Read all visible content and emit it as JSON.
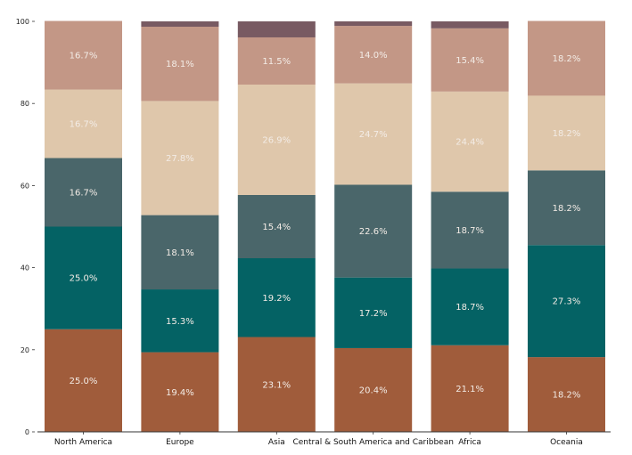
{
  "chart_data": {
    "type": "bar",
    "stacked": true,
    "title": "",
    "xlabel": "",
    "ylabel": "",
    "ylim": [
      0,
      100
    ],
    "yticks": [
      0,
      20,
      40,
      60,
      80,
      100
    ],
    "grid": false,
    "legend": "none",
    "categories": [
      "North America",
      "Europe",
      "Asia",
      "Central & South America and Caribbean",
      "Africa",
      "Oceania"
    ],
    "series": [
      {
        "name": "segment-1",
        "color": "#a05c3b",
        "values": [
          25.0,
          19.4,
          23.1,
          20.4,
          21.1,
          18.2
        ],
        "labeled": true
      },
      {
        "name": "segment-2",
        "color": "#046264",
        "values": [
          25.0,
          15.3,
          19.2,
          17.2,
          18.7,
          27.3
        ],
        "labeled": true
      },
      {
        "name": "segment-3",
        "color": "#4a666a",
        "values": [
          16.7,
          18.1,
          15.4,
          22.6,
          18.7,
          18.2
        ],
        "labeled": true
      },
      {
        "name": "segment-4",
        "color": "#dfc7ab",
        "values": [
          16.7,
          27.8,
          26.9,
          24.7,
          24.4,
          18.2
        ],
        "labeled": true
      },
      {
        "name": "segment-5",
        "color": "#c39786",
        "values": [
          16.7,
          18.1,
          11.5,
          14.0,
          15.4,
          18.2
        ],
        "labeled": true
      },
      {
        "name": "segment-6",
        "color": "#785a62",
        "values": [
          0.0,
          1.3,
          3.9,
          1.1,
          1.7,
          0.0
        ],
        "labeled": false
      }
    ],
    "value_format": "{v}%"
  }
}
